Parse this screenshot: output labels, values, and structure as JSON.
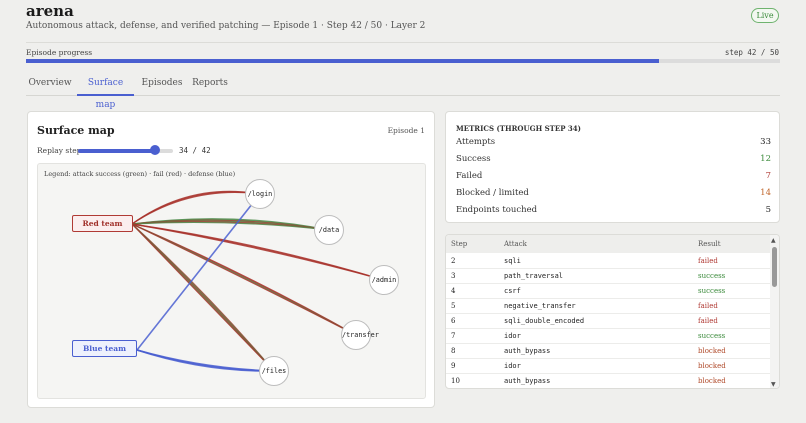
{
  "header": {
    "title": "arena",
    "subtitle": "Autonomous attack, defense, and verified patching — Episode 1 · Step 42 / 50 · Layer 2",
    "live_badge": "Live"
  },
  "progress": {
    "label": "Episode progress",
    "step_text": "step 42 / 50",
    "fraction": 0.84
  },
  "tabs": [
    {
      "label": "Overview"
    },
    {
      "label": "Surface map",
      "active": true
    },
    {
      "label": "Episodes"
    },
    {
      "label": "Reports"
    }
  ],
  "surface_map": {
    "title": "Surface map",
    "episode": "Episode 1",
    "replay_label": "Replay step",
    "replay_value": "34 / 42",
    "replay_fraction": 0.81,
    "legend": "Legend: attack success (green) · fail (red) · defense (blue)",
    "red_team": "Red team",
    "blue_team": "Blue team",
    "endpoints": [
      "/login",
      "/data",
      "/admin",
      "/transfer",
      "/files"
    ],
    "colors": {
      "success": "#4d8b4a",
      "fail": "#a8332c",
      "defense": "#4a5fd0"
    }
  },
  "metrics": {
    "heading": "METRICS (THROUGH STEP 34)",
    "items": [
      {
        "label": "Attempts",
        "value": "33",
        "color": "#222222"
      },
      {
        "label": "Success",
        "value": "12",
        "color": "#3a8a3a"
      },
      {
        "label": "Failed",
        "value": "7",
        "color": "#b03a34"
      },
      {
        "label": "Blocked / limited",
        "value": "14",
        "color": "#c0652a"
      },
      {
        "label": "Endpoints touched",
        "value": "5",
        "color": "#222222"
      }
    ]
  },
  "table": {
    "headers": {
      "step": "Step",
      "attack": "Attack",
      "result": "Result"
    },
    "rows": [
      {
        "step": "2",
        "attack": "sqli",
        "result": "failed"
      },
      {
        "step": "3",
        "attack": "path_traversal",
        "result": "success"
      },
      {
        "step": "4",
        "attack": "csrf",
        "result": "success"
      },
      {
        "step": "5",
        "attack": "negative_transfer",
        "result": "failed"
      },
      {
        "step": "6",
        "attack": "sqli_double_encoded",
        "result": "failed"
      },
      {
        "step": "7",
        "attack": "idor",
        "result": "success"
      },
      {
        "step": "8",
        "attack": "auth_bypass",
        "result": "blocked"
      },
      {
        "step": "9",
        "attack": "idor",
        "result": "blocked"
      },
      {
        "step": "10",
        "attack": "auth_bypass",
        "result": "blocked"
      }
    ],
    "result_colors": {
      "failed": "#b03a34",
      "success": "#3a8a3a",
      "blocked": "#b04a2a"
    }
  }
}
